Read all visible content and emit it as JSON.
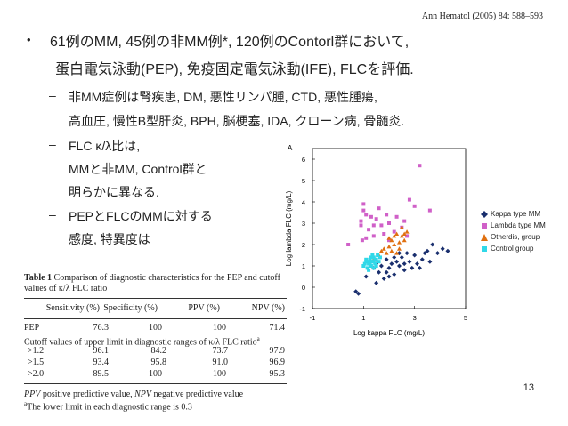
{
  "citation": "Ann Hematol (2005) 84: 588–593",
  "bullet": {
    "marker": "•",
    "line1": "61例のMM, 45例の非MM例*, 120例のContorl群において,",
    "line2": "蛋白電気泳動(PEP), 免疫固定電気泳動(IFE), FLCを評価."
  },
  "subbullets": [
    {
      "marker": "–",
      "lines": [
        "非MM症例は腎疾患, DM, 悪性リンパ腫, CTD, 悪性腫瘍,",
        "高血圧, 慢性B型肝炎, BPH, 脳梗塞, IDA, クローン病, 骨髄炎."
      ]
    },
    {
      "marker": "–",
      "lines": [
        "FLC κ/λ比は,",
        "MMと非MM, Control群と",
        "明らかに異なる."
      ]
    },
    {
      "marker": "–",
      "lines": [
        "PEPとFLCのMMに対する",
        "感度, 特異度は"
      ]
    }
  ],
  "table": {
    "caption_bold": "Table 1",
    "caption_text": "  Comparison of diagnostic characteristics for the PEP and cutoff values of κ/λ FLC ratio",
    "headers": [
      "Sensitivity (%)",
      "Specificity (%)",
      "PPV (%)",
      "NPV (%)"
    ],
    "rows": [
      {
        "label": "PEP",
        "values": [
          "76.3",
          "100",
          "100",
          "71.4"
        ]
      }
    ],
    "cutoff_label": "Cutoff values of upper limit in diagnostic ranges of κ/λ FLC ratio",
    "cutoff_sup": "a",
    "cutoff_rows": [
      {
        "label": ">1.2",
        "values": [
          "96.1",
          "84.2",
          "73.7",
          "97.9"
        ]
      },
      {
        "label": ">1.5",
        "values": [
          "93.4",
          "95.8",
          "91.0",
          "96.9"
        ]
      },
      {
        "label": ">2.0",
        "values": [
          "89.5",
          "100",
          "100",
          "95.3"
        ]
      }
    ],
    "footnote1_italic": "PPV",
    "footnote1_mid": " positive predictive value, ",
    "footnote1_italic2": "NPV",
    "footnote1_end": " negative predictive value",
    "footnote2_sup": "a",
    "footnote2": "The lower limit in each diagnostic range is 0.3"
  },
  "slide_number": "13",
  "chart_data": {
    "type": "scatter",
    "panel_label": "A",
    "xlabel": "Log kappa FLC (mg/L)",
    "ylabel": "Log lambda FLC (mg/L)",
    "xlim": [
      -1,
      5
    ],
    "ylim": [
      -1,
      6.5
    ],
    "xticks": [
      "-1",
      "1",
      "3",
      "5"
    ],
    "xtick_values": [
      -1,
      1,
      3,
      5
    ],
    "yticks": [
      "-1",
      "0",
      "1",
      "2",
      "3",
      "4",
      "5",
      "6"
    ],
    "ytick_values": [
      -1,
      0,
      1,
      2,
      3,
      4,
      5,
      6
    ],
    "grid": false,
    "legend_position": "right",
    "series": [
      {
        "name": "Kappa  type MM",
        "marker": "diamond",
        "color": "#1a2f6e",
        "points": [
          [
            0.7,
            -0.2
          ],
          [
            0.8,
            -0.3
          ],
          [
            1.1,
            0.5
          ],
          [
            1.3,
            1.2
          ],
          [
            1.4,
            0.9
          ],
          [
            1.5,
            0.2
          ],
          [
            1.6,
            0.7
          ],
          [
            1.7,
            1.0
          ],
          [
            1.8,
            0.4
          ],
          [
            1.9,
            1.3
          ],
          [
            2.0,
            0.9
          ],
          [
            2.1,
            1.1
          ],
          [
            2.2,
            0.6
          ],
          [
            2.3,
            1.2
          ],
          [
            2.4,
            1.0
          ],
          [
            2.5,
            1.4
          ],
          [
            2.6,
            0.8
          ],
          [
            2.7,
            1.6
          ],
          [
            2.8,
            1.2
          ],
          [
            2.9,
            0.9
          ],
          [
            3.0,
            1.5
          ],
          [
            3.1,
            1.1
          ],
          [
            3.3,
            1.3
          ],
          [
            3.5,
            1.7
          ],
          [
            3.6,
            1.2
          ],
          [
            3.7,
            2.0
          ],
          [
            3.9,
            1.6
          ],
          [
            4.1,
            1.8
          ],
          [
            4.3,
            1.7
          ],
          [
            2.0,
            0.5
          ],
          [
            1.5,
            1.1
          ],
          [
            2.4,
            1.6
          ],
          [
            3.2,
            0.9
          ],
          [
            1.9,
            0.7
          ],
          [
            2.2,
            1.4
          ],
          [
            2.6,
            1.1
          ],
          [
            3.4,
            1.6
          ]
        ]
      },
      {
        "name": "Lambda type MM",
        "marker": "square",
        "color": "#d060c8",
        "points": [
          [
            0.4,
            2.0
          ],
          [
            0.9,
            2.9
          ],
          [
            0.9,
            3.1
          ],
          [
            1.0,
            3.9
          ],
          [
            1.1,
            3.4
          ],
          [
            1.1,
            2.3
          ],
          [
            1.2,
            2.7
          ],
          [
            1.3,
            3.3
          ],
          [
            1.4,
            2.9
          ],
          [
            1.5,
            3.2
          ],
          [
            1.6,
            3.7
          ],
          [
            1.8,
            2.5
          ],
          [
            1.9,
            3.4
          ],
          [
            2.0,
            3.0
          ],
          [
            2.2,
            2.6
          ],
          [
            2.5,
            2.8
          ],
          [
            2.6,
            3.1
          ],
          [
            2.7,
            2.4
          ],
          [
            3.0,
            3.8
          ],
          [
            3.2,
            5.7
          ],
          [
            3.6,
            3.6
          ],
          [
            1.0,
            3.6
          ],
          [
            1.4,
            2.4
          ],
          [
            2.0,
            2.2
          ],
          [
            1.7,
            2.9
          ],
          [
            2.3,
            3.3
          ],
          [
            2.8,
            4.1
          ],
          [
            0.95,
            2.2
          ]
        ]
      },
      {
        "name": "Otherdis, group",
        "marker": "triangle",
        "color": "#e07010",
        "points": [
          [
            1.4,
            1.3
          ],
          [
            1.6,
            1.5
          ],
          [
            1.8,
            1.8
          ],
          [
            2.0,
            1.9
          ],
          [
            2.1,
            2.2
          ],
          [
            2.2,
            2.0
          ],
          [
            2.3,
            2.5
          ],
          [
            2.4,
            2.1
          ],
          [
            2.5,
            2.4
          ],
          [
            2.6,
            2.2
          ],
          [
            2.7,
            2.6
          ],
          [
            2.5,
            2.8
          ],
          [
            2.3,
            1.6
          ],
          [
            1.9,
            1.6
          ],
          [
            2.2,
            2.4
          ],
          [
            2.0,
            2.3
          ],
          [
            2.6,
            2.5
          ],
          [
            2.4,
            1.8
          ],
          [
            1.7,
            1.7
          ],
          [
            2.1,
            1.7
          ]
        ]
      },
      {
        "name": "Control group",
        "marker": "square",
        "color": "#30d8e8",
        "points": [
          [
            1.0,
            1.0
          ],
          [
            1.1,
            1.2
          ],
          [
            1.15,
            0.9
          ],
          [
            1.2,
            1.1
          ],
          [
            1.25,
            1.3
          ],
          [
            1.3,
            1.0
          ],
          [
            1.35,
            1.2
          ],
          [
            1.4,
            1.4
          ],
          [
            1.45,
            1.1
          ],
          [
            1.5,
            1.3
          ],
          [
            1.55,
            1.5
          ],
          [
            1.6,
            1.2
          ],
          [
            1.2,
            0.8
          ],
          [
            1.3,
            1.4
          ],
          [
            1.4,
            0.9
          ],
          [
            1.1,
            1.3
          ],
          [
            1.5,
            1.0
          ],
          [
            1.35,
            1.5
          ],
          [
            1.25,
            1.1
          ],
          [
            1.45,
            1.3
          ],
          [
            1.65,
            1.4
          ],
          [
            1.15,
            1.2
          ],
          [
            1.05,
            1.1
          ],
          [
            1.3,
            1.2
          ],
          [
            1.4,
            1.2
          ]
        ]
      }
    ]
  }
}
